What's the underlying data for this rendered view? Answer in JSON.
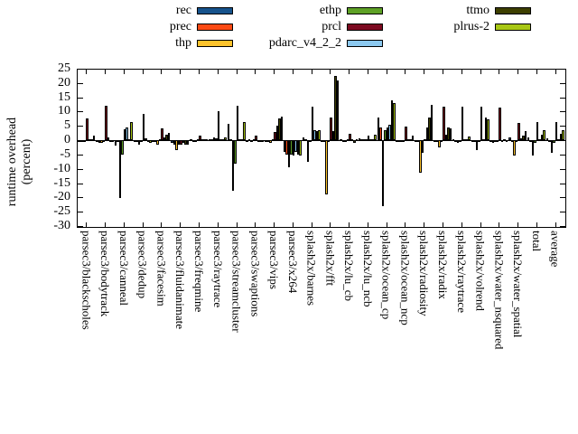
{
  "chart_data": {
    "type": "bar",
    "title": "",
    "ylabel_line1": "runtime overhead",
    "ylabel_line2": "(percent)",
    "ylim": [
      -30,
      25
    ],
    "ytick_step": 5,
    "yticks": [
      25,
      20,
      15,
      10,
      5,
      0,
      -5,
      -10,
      -15,
      -20,
      -25,
      -30
    ],
    "grid": "off",
    "legend_position": "top",
    "legend_columns": [
      [
        "rec",
        "prec",
        "thp"
      ],
      [
        "ethp",
        "prcl",
        "pdarc_v4_2_2"
      ],
      [
        "ttmo",
        "plrus-2"
      ]
    ],
    "categories": [
      "parsec3/blackscholes",
      "parsec3/bodytrack",
      "parsec3/canneal",
      "parsec3/dedup",
      "parsec3/facesim",
      "parsec3/fluidanimate",
      "parsec3/freqmine",
      "parsec3/raytrace",
      "parsec3/streamcluster",
      "parsec3/swaptions",
      "parsec3/vips",
      "parsec3/x264",
      "splash2x/barnes",
      "splash2x/fft",
      "splash2x/lu_cb",
      "splash2x/lu_ncb",
      "splash2x/ocean_cp",
      "splash2x/ocean_ncp",
      "splash2x/radiosity",
      "splash2x/radix",
      "splash2x/raytrace",
      "splash2x/volrend",
      "splash2x/water_nsquared",
      "splash2x/water_spatial",
      "total",
      "average"
    ],
    "series": [
      {
        "name": "rec",
        "color": "#17538c",
        "values": [
          -0.5,
          -0.4,
          -2.0,
          -0.4,
          -0.5,
          -1.0,
          0.2,
          0.5,
          5.7,
          -0.3,
          -0.5,
          -4.1,
          1.0,
          -0.5,
          0.3,
          0.8,
          8.0,
          -0.5,
          -0.5,
          -0.5,
          0.3,
          -0.4,
          -0.5,
          1.0,
          1.0,
          0.8
        ]
      },
      {
        "name": "prec",
        "color": "#fb4a14",
        "values": [
          -0.3,
          -0.8,
          -0.5,
          -0.6,
          -0.4,
          -1.5,
          -0.3,
          0.3,
          0.5,
          0.3,
          -0.4,
          -5.0,
          0.3,
          -0.5,
          -0.4,
          0.5,
          4.6,
          -0.7,
          -0.7,
          -0.5,
          -0.3,
          -0.5,
          -1.0,
          -0.3,
          -0.2,
          -0.3
        ]
      },
      {
        "name": "thp",
        "color": "#fdc32c",
        "values": [
          -0.4,
          -1.0,
          -20.2,
          -1.5,
          -1.4,
          -3.4,
          -0.4,
          1.1,
          -17.6,
          -0.5,
          -0.8,
          -9.4,
          -7.5,
          -19.0,
          -0.6,
          0.5,
          -23.0,
          -0.6,
          -11.5,
          -2.5,
          -1.0,
          -3.5,
          -0.5,
          -5.4,
          -5.3,
          -4.3
        ]
      },
      {
        "name": "ethp",
        "color": "#5ea126",
        "values": [
          -0.3,
          -0.5,
          -5.1,
          -0.7,
          0.3,
          -1.4,
          0.2,
          0.8,
          -8.1,
          0.3,
          0.3,
          -5.0,
          -0.5,
          -0.7,
          0.3,
          0.3,
          3.5,
          -0.5,
          -4.5,
          -0.5,
          -0.3,
          -0.5,
          -0.3,
          -0.5,
          -0.8,
          -1.0
        ]
      },
      {
        "name": "prcl",
        "color": "#7c0a20",
        "values": [
          7.5,
          12.0,
          3.9,
          9.3,
          4.0,
          -1.5,
          1.5,
          10.2,
          12.0,
          1.5,
          2.9,
          -5.5,
          11.8,
          7.8,
          2.3,
          1.5,
          4.5,
          4.7,
          0.5,
          11.8,
          11.8,
          11.8,
          11.5,
          6.0,
          6.2,
          6.5
        ]
      },
      {
        "name": "pdarc_v4_2_2",
        "color": "#8cc9f0",
        "values": [
          0.4,
          1.0,
          4.6,
          0.6,
          0.9,
          -1.0,
          0.3,
          0.4,
          0.5,
          -0.3,
          5.0,
          -4.0,
          3.5,
          3.1,
          0.4,
          0.3,
          5.5,
          0.4,
          4.5,
          2.0,
          0.4,
          0.5,
          -0.3,
          0.8,
          0.4,
          0.5
        ]
      },
      {
        "name": "ttmo",
        "color": "#3d3f00",
        "values": [
          0.5,
          -0.4,
          0.5,
          -0.3,
          2.0,
          -1.4,
          0.3,
          0.5,
          0.4,
          -0.4,
          7.6,
          -5.0,
          3.2,
          22.5,
          -1.0,
          0.5,
          14.0,
          0.5,
          8.0,
          4.5,
          0.5,
          7.8,
          0.3,
          1.5,
          1.8,
          2.2
        ]
      },
      {
        "name": "plrus-2",
        "color": "#a8c715",
        "values": [
          1.6,
          -0.6,
          6.3,
          -0.8,
          2.6,
          -1.6,
          0.4,
          1.0,
          6.3,
          -0.5,
          8.3,
          -5.5,
          3.4,
          21.0,
          0.5,
          2.0,
          13.0,
          1.5,
          12.5,
          4.2,
          1.2,
          7.2,
          -0.5,
          3.2,
          3.5,
          3.4
        ]
      }
    ]
  }
}
